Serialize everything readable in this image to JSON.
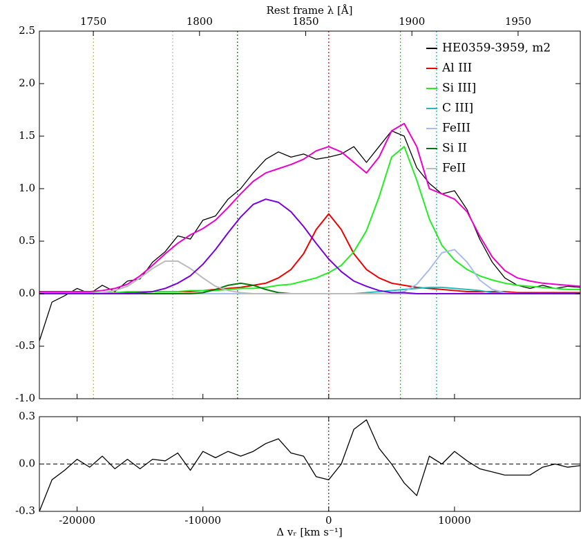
{
  "chart_data": [
    {
      "type": "line",
      "x2label": "Rest frame λ [Å]",
      "x": [
        -23000,
        -22000,
        -21000,
        -20000,
        -19000,
        -18000,
        -17000,
        -16000,
        -15000,
        -14000,
        -13000,
        -12000,
        -11000,
        -10000,
        -9000,
        -8000,
        -7000,
        -6000,
        -5000,
        -4000,
        -3000,
        -2000,
        -1000,
        0,
        1000,
        2000,
        3000,
        4000,
        5000,
        6000,
        7000,
        8000,
        9000,
        10000,
        11000,
        12000,
        13000,
        14000,
        15000,
        16000,
        17000,
        18000,
        19000,
        20000
      ],
      "xlim": [
        -23000,
        20000
      ],
      "x2lim": [
        1724.6,
        1979.3
      ],
      "x2ticks": [
        1750,
        1800,
        1850,
        1900,
        1950
      ],
      "ylim": [
        -1.0,
        2.5
      ],
      "yticks": [
        {
          "value": -1.0,
          "label": "-1.0"
        },
        -0.5,
        {
          "value": 0.0,
          "label": "0.0"
        },
        0.5,
        {
          "value": 1.0,
          "label": "1.0"
        },
        1.5,
        {
          "value": 2.0,
          "label": "2.0"
        },
        2.5
      ],
      "legend": "upper right",
      "series": [
        {
          "name": "HE0359-3959, m2",
          "color": "#000000",
          "values": [
            -0.45,
            -0.08,
            -0.02,
            0.05,
            0.0,
            0.08,
            0.02,
            0.12,
            0.14,
            0.3,
            0.4,
            0.55,
            0.52,
            0.7,
            0.74,
            0.9,
            1.0,
            1.15,
            1.28,
            1.35,
            1.3,
            1.33,
            1.28,
            1.3,
            1.33,
            1.4,
            1.25,
            1.4,
            1.55,
            1.5,
            1.2,
            1.05,
            0.95,
            0.98,
            0.8,
            0.52,
            0.3,
            0.15,
            0.08,
            0.05,
            0.08,
            0.05,
            0.07,
            0.06
          ]
        },
        {
          "name": "Al III",
          "color": "#ee0000",
          "values": [
            0.01,
            0.01,
            0.01,
            0.01,
            0.01,
            0.01,
            0.01,
            0.01,
            0.01,
            0.02,
            0.02,
            0.02,
            0.02,
            0.03,
            0.04,
            0.05,
            0.06,
            0.08,
            0.1,
            0.15,
            0.23,
            0.38,
            0.61,
            0.76,
            0.61,
            0.38,
            0.23,
            0.15,
            0.1,
            0.08,
            0.06,
            0.05,
            0.04,
            0.03,
            0.02,
            0.02,
            0.02,
            0.02,
            0.01,
            0.01,
            0.01,
            0.01,
            0.01,
            0.01
          ]
        },
        {
          "name": "Si III]",
          "color": "#22ee22",
          "values": [
            0.01,
            0.01,
            0.01,
            0.01,
            0.01,
            0.01,
            0.01,
            0.02,
            0.02,
            0.02,
            0.02,
            0.02,
            0.03,
            0.03,
            0.03,
            0.04,
            0.05,
            0.05,
            0.06,
            0.08,
            0.09,
            0.12,
            0.15,
            0.2,
            0.27,
            0.4,
            0.6,
            0.92,
            1.3,
            1.4,
            1.08,
            0.71,
            0.46,
            0.32,
            0.23,
            0.17,
            0.13,
            0.1,
            0.08,
            0.07,
            0.06,
            0.05,
            0.04,
            0.04
          ]
        },
        {
          "name": "C III]",
          "color": "#22bbbb",
          "values": [
            0,
            0,
            0,
            0,
            0,
            0,
            0,
            0,
            0,
            0,
            0,
            0,
            0,
            0,
            0,
            0,
            0,
            0,
            0,
            0,
            0,
            0,
            0,
            0,
            0,
            0,
            0.01,
            0.02,
            0.03,
            0.04,
            0.05,
            0.06,
            0.06,
            0.05,
            0.04,
            0.03,
            0.01,
            0.01,
            0,
            0,
            0,
            0,
            0,
            0
          ]
        },
        {
          "name": "FeIII",
          "color": "#aabbee",
          "values": [
            0,
            0,
            0,
            0,
            0,
            0,
            0,
            0,
            0,
            0,
            0,
            0,
            0,
            0,
            0,
            0,
            0,
            0,
            0,
            0,
            0,
            0,
            0,
            0,
            0,
            0,
            0,
            0,
            0,
            0.02,
            0.09,
            0.23,
            0.39,
            0.42,
            0.3,
            0.13,
            0.04,
            0.01,
            0,
            0,
            0,
            0,
            0,
            0
          ]
        },
        {
          "name": "Si II",
          "color": "#007700",
          "values": [
            0,
            0,
            0,
            0,
            0,
            0,
            0,
            0,
            0,
            0,
            0,
            0,
            0,
            0.01,
            0.04,
            0.08,
            0.1,
            0.08,
            0.04,
            0.01,
            0,
            0,
            0,
            0,
            0,
            0,
            0,
            0,
            0,
            0,
            0,
            0,
            0,
            0,
            0,
            0,
            0,
            0,
            0,
            0,
            0,
            0,
            0,
            0
          ]
        },
        {
          "name": "FeII",
          "color": "#bbbbbb",
          "values": [
            0,
            0,
            0,
            0,
            0,
            0.01,
            0.03,
            0.07,
            0.15,
            0.24,
            0.31,
            0.31,
            0.24,
            0.15,
            0.07,
            0.03,
            0.01,
            0,
            0,
            0,
            0,
            0,
            0,
            0,
            0,
            0,
            0,
            0,
            0,
            0,
            0,
            0,
            0,
            0,
            0,
            0,
            0,
            0,
            0,
            0,
            0,
            0,
            0,
            0
          ]
        },
        {
          "color": "#7700dd",
          "values": [
            0,
            0,
            0,
            0,
            0,
            0,
            0,
            0,
            0.01,
            0.02,
            0.05,
            0.1,
            0.17,
            0.28,
            0.42,
            0.58,
            0.73,
            0.85,
            0.9,
            0.87,
            0.78,
            0.64,
            0.48,
            0.33,
            0.21,
            0.12,
            0.07,
            0.03,
            0.01,
            0.01,
            0,
            0,
            0,
            0,
            0,
            0,
            0,
            0,
            0,
            0,
            0,
            0,
            0,
            0
          ]
        },
        {
          "color": "#ee00cc",
          "values": [
            0.02,
            0.02,
            0.02,
            0.02,
            0.02,
            0.03,
            0.05,
            0.09,
            0.17,
            0.27,
            0.38,
            0.48,
            0.56,
            0.62,
            0.7,
            0.82,
            0.95,
            1.07,
            1.15,
            1.19,
            1.23,
            1.28,
            1.36,
            1.4,
            1.35,
            1.25,
            1.15,
            1.3,
            1.55,
            1.62,
            1.4,
            1.0,
            0.95,
            0.9,
            0.78,
            0.55,
            0.35,
            0.22,
            0.15,
            0.12,
            0.1,
            0.09,
            0.08,
            0.07
          ]
        }
      ],
      "reference_lines": [
        {
          "value": -18700,
          "color": "#c8c800"
        },
        {
          "value": -12400,
          "color": "#bbbbbb"
        },
        {
          "value": -7250,
          "color": "#008000"
        },
        {
          "value": 0,
          "color": "#ff0000"
        },
        {
          "value": 5700,
          "color": "#00dd00"
        },
        {
          "value": 8570,
          "color": "#00bbcc"
        }
      ]
    },
    {
      "type": "line",
      "xlabel": "Δ vᵣ [km s⁻¹]",
      "x": [
        -23000,
        -22000,
        -21000,
        -20000,
        -19000,
        -18000,
        -17000,
        -16000,
        -15000,
        -14000,
        -13000,
        -12000,
        -11000,
        -10000,
        -9000,
        -8000,
        -7000,
        -6000,
        -5000,
        -4000,
        -3000,
        -2000,
        -1000,
        0,
        1000,
        2000,
        3000,
        4000,
        5000,
        6000,
        7000,
        8000,
        9000,
        10000,
        11000,
        12000,
        13000,
        14000,
        15000,
        16000,
        17000,
        18000,
        19000,
        20000
      ],
      "values": [
        -0.3,
        -0.1,
        -0.04,
        0.03,
        -0.02,
        0.05,
        -0.03,
        0.03,
        -0.03,
        0.03,
        0.02,
        0.07,
        -0.04,
        0.08,
        0.04,
        0.08,
        0.05,
        0.08,
        0.13,
        0.16,
        0.07,
        0.05,
        -0.08,
        -0.1,
        0.0,
        0.22,
        0.28,
        0.1,
        0.0,
        -0.12,
        -0.2,
        0.05,
        0.0,
        0.08,
        0.02,
        -0.03,
        -0.05,
        -0.07,
        -0.07,
        -0.07,
        -0.02,
        0.0,
        -0.02,
        -0.01
      ],
      "color": "#000000",
      "xlim": [
        -23000,
        20000
      ],
      "xticks": [
        -20000,
        -10000,
        0,
        10000
      ],
      "ylim": [
        -0.3,
        0.3
      ],
      "yticks": [
        -0.3,
        {
          "value": 0.0,
          "label": "0.0"
        },
        0.3
      ],
      "hline": 0,
      "vline": 0
    }
  ]
}
